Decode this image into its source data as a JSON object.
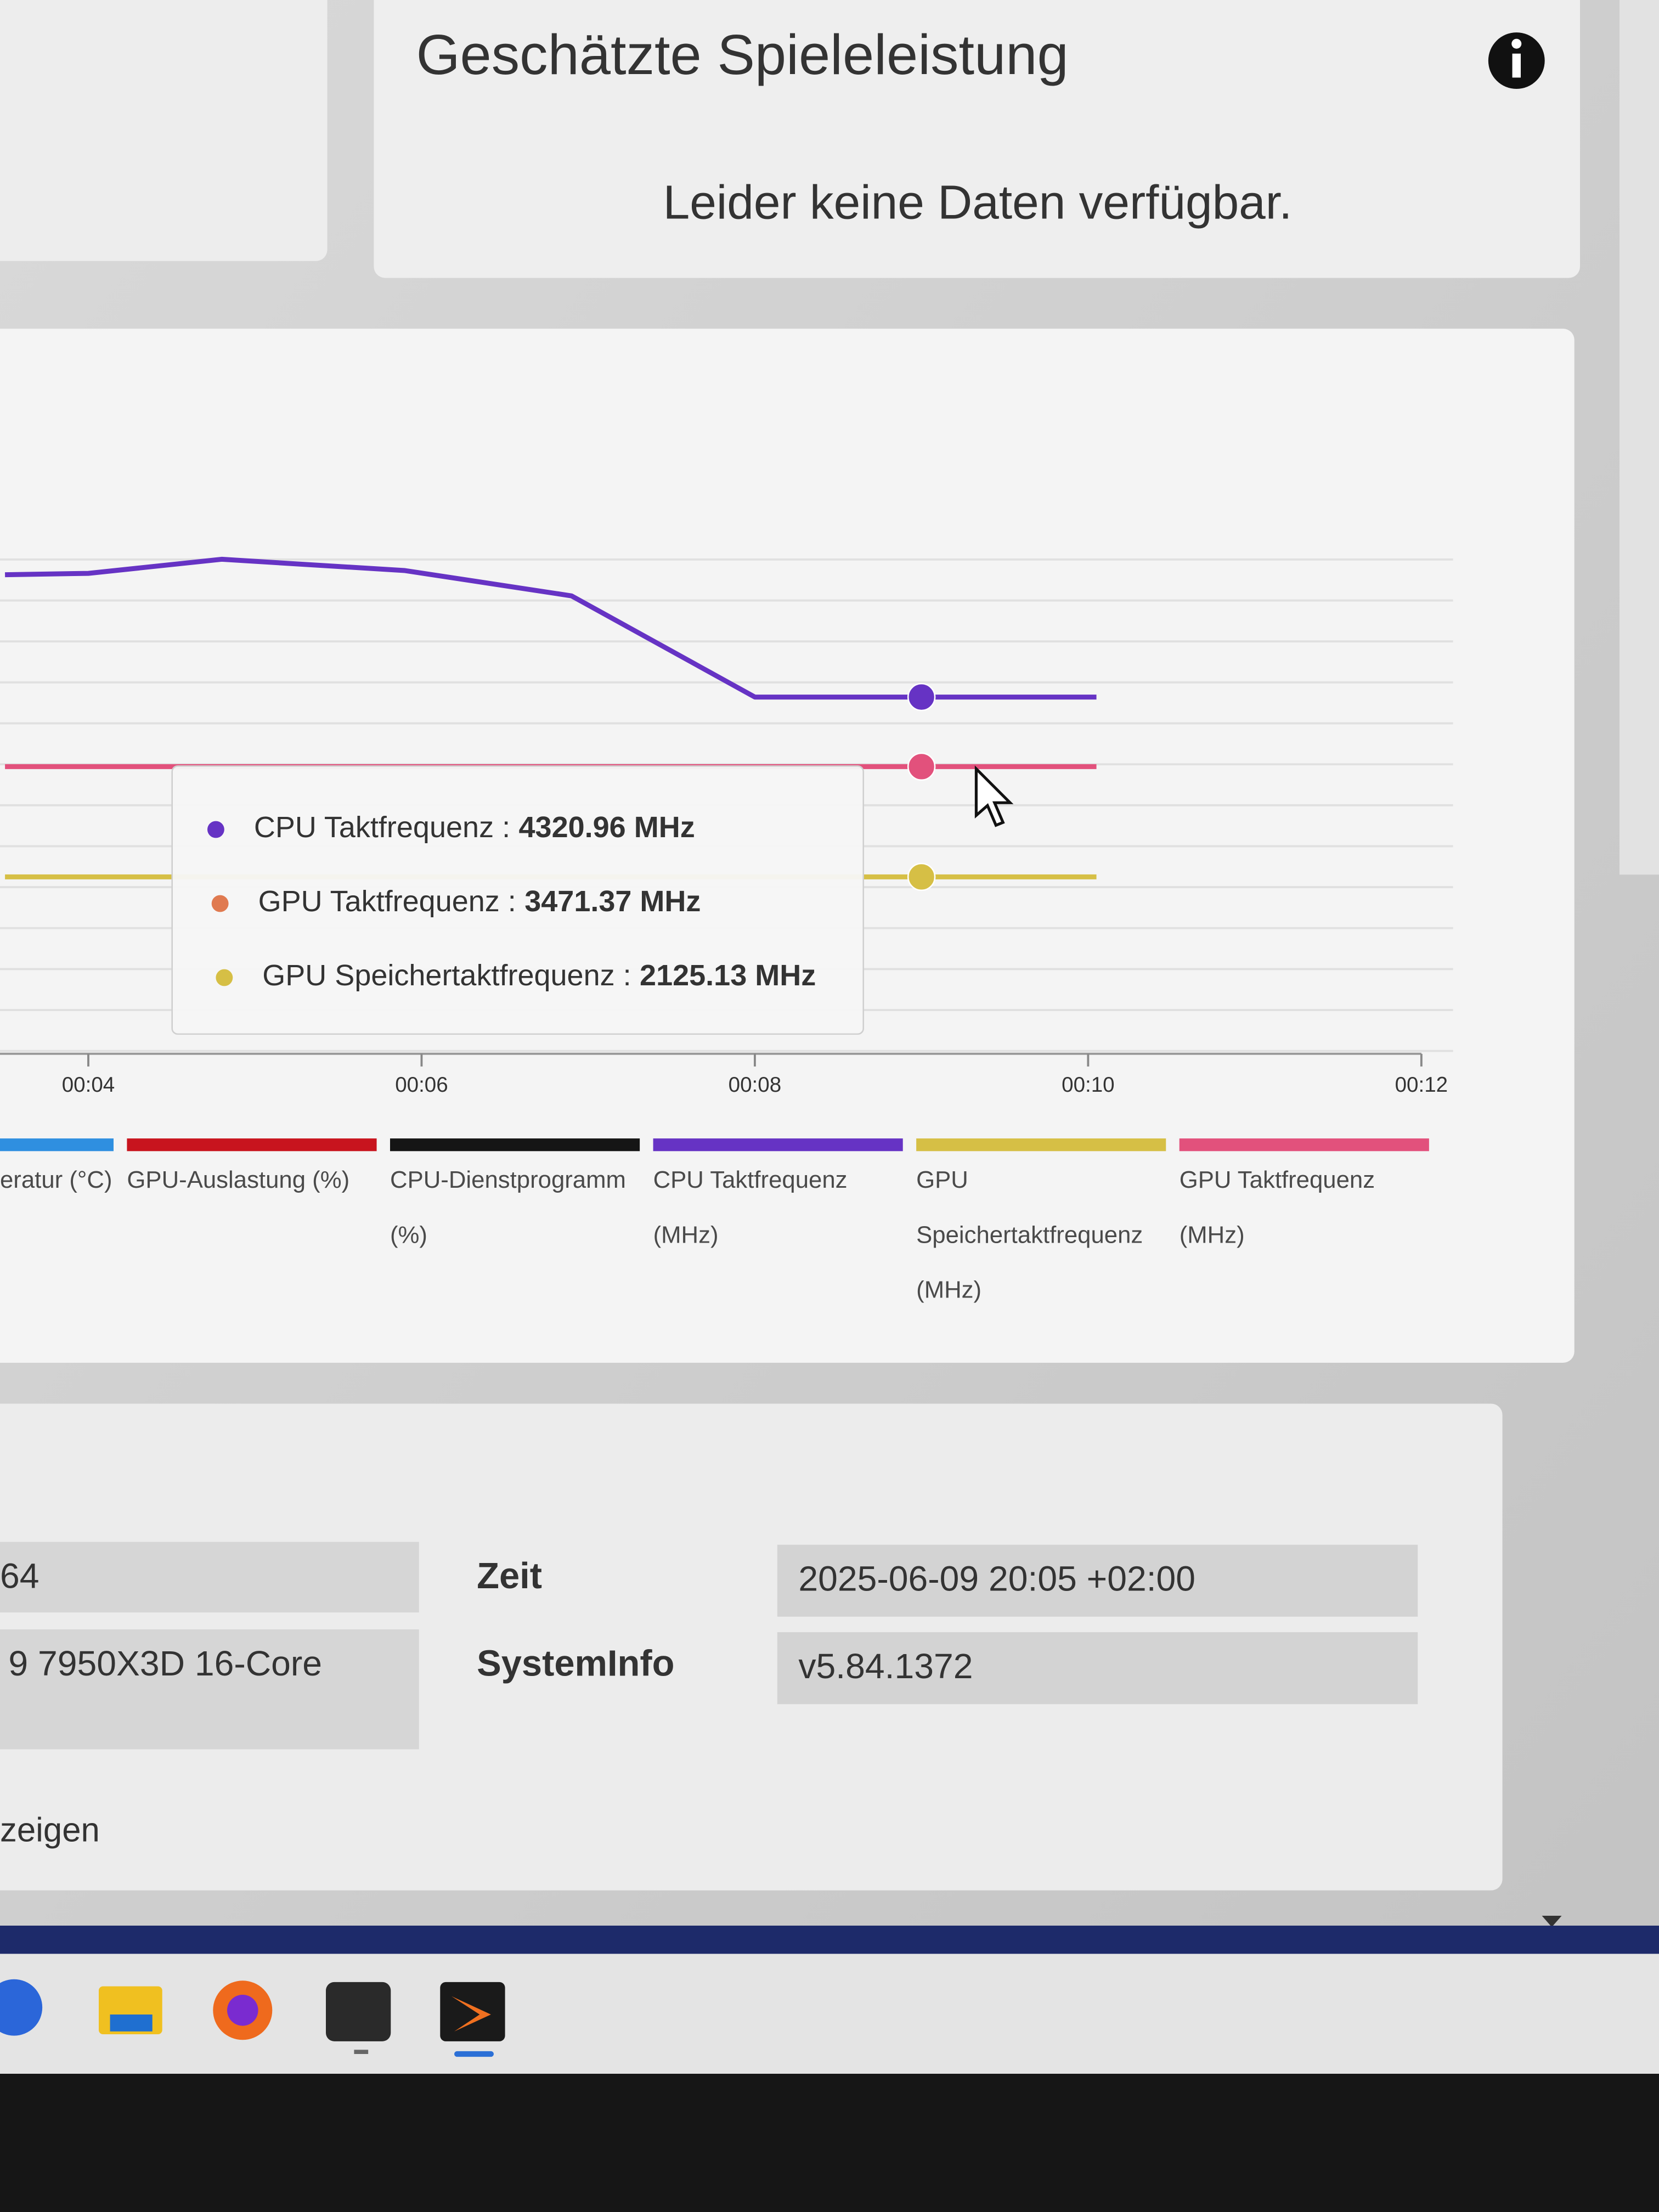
{
  "header": {
    "title": "Geschätzte Spieleleistung",
    "message": "Leider keine Daten verfügbar."
  },
  "chart_data": {
    "type": "line",
    "x": [
      3.5,
      4,
      4.8,
      5.9,
      6.9,
      8,
      9,
      10.05
    ],
    "xlim": [
      3.47,
      12.19
    ],
    "xticks": [
      {
        "value": 4,
        "label": "00:04"
      },
      {
        "value": 6,
        "label": "00:06"
      },
      {
        "value": 8,
        "label": "00:08"
      },
      {
        "value": 10,
        "label": "00:10"
      },
      {
        "value": 12,
        "label": "00:12"
      }
    ],
    "ylim": [
      0,
      6200
    ],
    "yticks": [
      0,
      500,
      1000,
      1500,
      2000,
      2500,
      3000,
      3500,
      4000,
      4500,
      5000,
      5500,
      6000
    ],
    "ytick_labels": false,
    "grid": true,
    "series": [
      {
        "name": "eratur (°C)",
        "color": "#2f8fe0",
        "values": [
          null,
          null,
          null,
          null,
          null,
          null,
          null,
          null
        ]
      },
      {
        "name": "GPU-Auslastung (%)",
        "color": "#c8141e",
        "values": [
          null,
          null,
          null,
          null,
          null,
          null,
          null,
          null
        ]
      },
      {
        "name": "CPU-Dienstprogramm (%)",
        "color": "#151515",
        "values": [
          null,
          null,
          null,
          null,
          null,
          null,
          null,
          null
        ]
      },
      {
        "name": "CPU Taktfrequenz (MHz)",
        "color": "#6633c4",
        "values": [
          5814,
          5831,
          6003,
          5865,
          5556,
          4320.96,
          4320.96,
          4320.96
        ]
      },
      {
        "name": "GPU Speichertaktfrequenz (MHz)",
        "color": "#d6bf45",
        "values": [
          2125.13,
          2125.13,
          2125.13,
          2125.13,
          2125.13,
          2125.13,
          2125.13,
          2125.13
        ]
      },
      {
        "name": "GPU Taktfrequenz (MHz)",
        "color": "#e2517c",
        "values": [
          3471.37,
          3471.37,
          3471.37,
          3471.37,
          3471.37,
          3471.37,
          3471.37,
          3471.37
        ]
      }
    ],
    "tooltip": {
      "x": 9,
      "items": [
        {
          "label": "CPU Taktfrequenz :",
          "value": 4320.96,
          "value_label": "4320.96 MHz",
          "color": "#6633c4"
        },
        {
          "label": "GPU Taktfrequenz :",
          "value": 3471.37,
          "value_label": "3471.37 MHz",
          "color": "#e07a50"
        },
        {
          "label": "GPU Speichertaktfrequenz :",
          "value": 2125.13,
          "value_label": "2125.13 MHz",
          "color": "#d6bf45"
        }
      ]
    }
  },
  "system_info": {
    "rows": [
      [
        "64",
        "Zeit",
        "2025-06-09 20:05 +02:00"
      ],
      [
        "9 7950X3D 16-Core",
        "SystemInfo",
        "v5.84.1372"
      ]
    ],
    "link": "zeigen"
  }
}
